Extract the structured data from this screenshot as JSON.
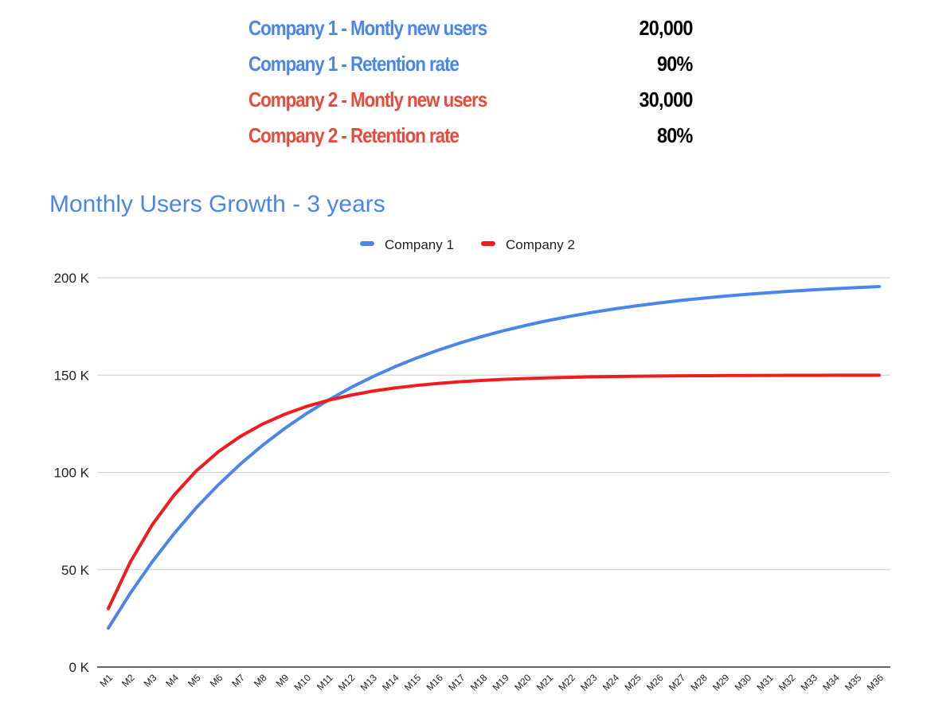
{
  "assumptions": [
    {
      "label": "Company 1 - Montly new users",
      "value": "20,000",
      "color": "#4a86e8"
    },
    {
      "label": "Company 1 - Retention rate",
      "value": "90%",
      "color": "#4a86e8"
    },
    {
      "label": "Company 2 - Montly new users",
      "value": "30,000",
      "color": "#e84a3c"
    },
    {
      "label": "Company 2 - Retention rate",
      "value": "80%",
      "color": "#e84a3c"
    }
  ],
  "chart_data": {
    "type": "line",
    "title": "Monthly Users Growth - 3 years",
    "title_color": "#4a86e8",
    "xlabel": "",
    "ylabel": "",
    "categories": [
      "M1",
      "M2",
      "M3",
      "M4",
      "M5",
      "M6",
      "M7",
      "M8",
      "M9",
      "M10",
      "M11",
      "M12",
      "M13",
      "M14",
      "M15",
      "M16",
      "M17",
      "M18",
      "M19",
      "M20",
      "M21",
      "M22",
      "M23",
      "M24",
      "M25",
      "M26",
      "M27",
      "M28",
      "M29",
      "M30",
      "M31",
      "M32",
      "M33",
      "M34",
      "M35",
      "M36"
    ],
    "series": [
      {
        "name": "Company 1",
        "color": "#4a86e8",
        "values": [
          20000,
          38000,
          54200,
          68780,
          81902,
          93712,
          104341,
          113907,
          122516,
          130264,
          137238,
          143514,
          149163,
          154247,
          158822,
          162940,
          166646,
          169981,
          172983,
          175685,
          178117,
          180305,
          182275,
          184047,
          185643,
          187078,
          188370,
          189533,
          190580,
          191522,
          192370,
          193133,
          193820,
          194438,
          194994,
          195495
        ]
      },
      {
        "name": "Company 2",
        "color": "#ee1c1c",
        "values": [
          30000,
          54000,
          73200,
          88560,
          100848,
          110678,
          118543,
          124834,
          129867,
          133894,
          137115,
          139692,
          141754,
          143403,
          144722,
          145778,
          146622,
          147298,
          147838,
          148271,
          148617,
          148893,
          149115,
          149292,
          149433,
          149547,
          149637,
          149710,
          149768,
          149814,
          149851,
          149881,
          149905,
          149924,
          149939,
          149951
        ]
      }
    ],
    "ylim": [
      0,
      200000
    ],
    "yticks": [
      0,
      50000,
      100000,
      150000,
      200000
    ],
    "ytick_labels": [
      "0 K",
      "50 K",
      "100 K",
      "150 K",
      "200 K"
    ],
    "grid": true,
    "legend_position": "top-center",
    "gridline_color": "#cccccc",
    "axis_color": "#333333",
    "text_color": "#222222"
  }
}
